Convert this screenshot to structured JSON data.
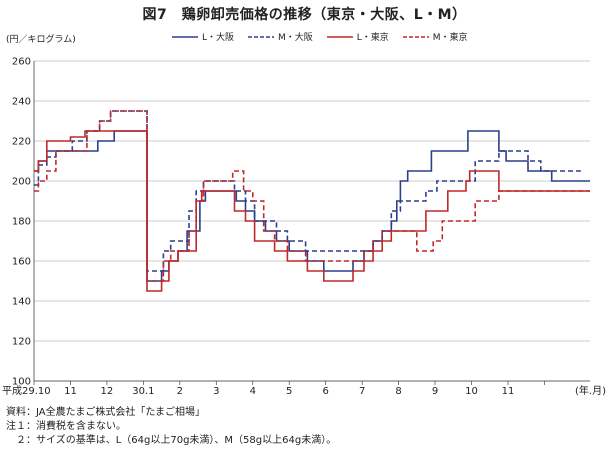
{
  "figure": {
    "title": "図7　鶏卵卸売価格の推移（東京・大阪、L・M）",
    "unit_label": "(円／キログラム)",
    "axis_end_label": "(年.月)",
    "notes": [
      "資料：JA全農たまご株式会社「たまご相場」",
      "注１：消費税を含まない。",
      "　２：サイズの基準は、L（64g以上70g未満）、M（58g以上64g未満）。"
    ]
  },
  "chart_data": {
    "type": "line",
    "ylim": [
      100,
      260
    ],
    "yticks": [
      100,
      120,
      140,
      160,
      180,
      200,
      220,
      240,
      260
    ],
    "xlim": [
      0,
      15.25
    ],
    "xticks": [
      {
        "x": 0,
        "label": "平成29.10"
      },
      {
        "x": 1,
        "label": "11"
      },
      {
        "x": 2,
        "label": "12"
      },
      {
        "x": 3,
        "label": "30.1"
      },
      {
        "x": 4,
        "label": "2"
      },
      {
        "x": 5,
        "label": "3"
      },
      {
        "x": 6,
        "label": "4"
      },
      {
        "x": 7,
        "label": "5"
      },
      {
        "x": 8,
        "label": "6"
      },
      {
        "x": 9,
        "label": "7"
      },
      {
        "x": 10,
        "label": "8"
      },
      {
        "x": 11,
        "label": "9"
      },
      {
        "x": 12,
        "label": "10"
      },
      {
        "x": 13,
        "label": "11"
      },
      {
        "x": 14,
        "label": ""
      }
    ],
    "grid": true,
    "legend_position": "top",
    "series": [
      {
        "name": "L・大阪",
        "color": "#2b3f8c",
        "dash": false,
        "points": [
          [
            0,
            205
          ],
          [
            0.12,
            210
          ],
          [
            0.35,
            215
          ],
          [
            0.75,
            215
          ],
          [
            1.3,
            215
          ],
          [
            1.75,
            220
          ],
          [
            2.2,
            225
          ],
          [
            2.55,
            225
          ],
          [
            2.95,
            225
          ],
          [
            3.1,
            150
          ],
          [
            3.35,
            150
          ],
          [
            3.5,
            155
          ],
          [
            3.7,
            160
          ],
          [
            3.95,
            165
          ],
          [
            4.2,
            175
          ],
          [
            4.55,
            190
          ],
          [
            4.7,
            195
          ],
          [
            5.0,
            195
          ],
          [
            5.3,
            195
          ],
          [
            5.55,
            190
          ],
          [
            5.8,
            185
          ],
          [
            6.05,
            180
          ],
          [
            6.35,
            175
          ],
          [
            6.65,
            170
          ],
          [
            7.0,
            165
          ],
          [
            7.5,
            160
          ],
          [
            7.95,
            155
          ],
          [
            8.45,
            155
          ],
          [
            8.75,
            160
          ],
          [
            9.05,
            165
          ],
          [
            9.3,
            170
          ],
          [
            9.55,
            175
          ],
          [
            9.8,
            180
          ],
          [
            9.95,
            190
          ],
          [
            10.05,
            200
          ],
          [
            10.25,
            205
          ],
          [
            10.55,
            205
          ],
          [
            10.9,
            215
          ],
          [
            11.7,
            215
          ],
          [
            11.9,
            225
          ],
          [
            12.5,
            225
          ],
          [
            12.75,
            215
          ],
          [
            12.95,
            210
          ],
          [
            13.4,
            210
          ],
          [
            13.55,
            205
          ],
          [
            14.2,
            200
          ],
          [
            14.45,
            200
          ],
          [
            15.25,
            200
          ]
        ]
      },
      {
        "name": "M・大阪",
        "color": "#2b3f8c",
        "dash": true,
        "points": [
          [
            0,
            198
          ],
          [
            0.12,
            208
          ],
          [
            0.35,
            212
          ],
          [
            0.6,
            215
          ],
          [
            1.05,
            220
          ],
          [
            1.45,
            225
          ],
          [
            1.8,
            230
          ],
          [
            2.1,
            235
          ],
          [
            2.55,
            235
          ],
          [
            2.95,
            235
          ],
          [
            3.1,
            155
          ],
          [
            3.35,
            155
          ],
          [
            3.55,
            165
          ],
          [
            3.75,
            170
          ],
          [
            4.0,
            170
          ],
          [
            4.25,
            185
          ],
          [
            4.45,
            195
          ],
          [
            4.65,
            200
          ],
          [
            5.0,
            200
          ],
          [
            5.25,
            200
          ],
          [
            5.5,
            195
          ],
          [
            5.8,
            190
          ],
          [
            6.05,
            180
          ],
          [
            6.3,
            180
          ],
          [
            6.65,
            175
          ],
          [
            6.95,
            170
          ],
          [
            7.45,
            165
          ],
          [
            8.1,
            165
          ],
          [
            8.45,
            165
          ],
          [
            8.75,
            165
          ],
          [
            9.05,
            165
          ],
          [
            9.3,
            170
          ],
          [
            9.55,
            175
          ],
          [
            9.8,
            185
          ],
          [
            10.05,
            190
          ],
          [
            10.4,
            190
          ],
          [
            10.75,
            195
          ],
          [
            11.05,
            200
          ],
          [
            11.9,
            200
          ],
          [
            12.1,
            210
          ],
          [
            12.55,
            210
          ],
          [
            12.75,
            215
          ],
          [
            13.35,
            215
          ],
          [
            13.55,
            210
          ],
          [
            13.9,
            205
          ],
          [
            15.0,
            205
          ]
        ]
      },
      {
        "name": "L・東京",
        "color": "#c0282a",
        "dash": false,
        "points": [
          [
            0,
            205
          ],
          [
            0.12,
            210
          ],
          [
            0.35,
            220
          ],
          [
            0.75,
            220
          ],
          [
            1.0,
            222
          ],
          [
            1.4,
            225
          ],
          [
            1.75,
            225
          ],
          [
            2.2,
            225
          ],
          [
            2.95,
            225
          ],
          [
            3.1,
            145
          ],
          [
            3.35,
            145
          ],
          [
            3.5,
            150
          ],
          [
            3.7,
            160
          ],
          [
            3.95,
            165
          ],
          [
            4.2,
            165
          ],
          [
            4.45,
            190
          ],
          [
            4.6,
            195
          ],
          [
            5.0,
            195
          ],
          [
            5.3,
            195
          ],
          [
            5.5,
            185
          ],
          [
            5.8,
            180
          ],
          [
            6.05,
            170
          ],
          [
            6.35,
            170
          ],
          [
            6.6,
            165
          ],
          [
            6.95,
            160
          ],
          [
            7.5,
            155
          ],
          [
            7.95,
            150
          ],
          [
            8.45,
            150
          ],
          [
            8.75,
            155
          ],
          [
            9.05,
            160
          ],
          [
            9.3,
            165
          ],
          [
            9.55,
            170
          ],
          [
            9.8,
            175
          ],
          [
            10.05,
            175
          ],
          [
            10.4,
            175
          ],
          [
            10.75,
            185
          ],
          [
            11.05,
            185
          ],
          [
            11.35,
            195
          ],
          [
            11.85,
            200
          ],
          [
            11.95,
            205
          ],
          [
            12.3,
            205
          ],
          [
            12.65,
            205
          ],
          [
            12.75,
            195
          ],
          [
            15.25,
            195
          ]
        ]
      },
      {
        "name": "M・東京",
        "color": "#c0282a",
        "dash": true,
        "points": [
          [
            0,
            195
          ],
          [
            0.12,
            200
          ],
          [
            0.35,
            205
          ],
          [
            0.6,
            215
          ],
          [
            1.05,
            215
          ],
          [
            1.45,
            225
          ],
          [
            1.8,
            230
          ],
          [
            2.1,
            235
          ],
          [
            2.55,
            235
          ],
          [
            2.95,
            235
          ],
          [
            3.1,
            150
          ],
          [
            3.35,
            150
          ],
          [
            3.55,
            160
          ],
          [
            3.75,
            165
          ],
          [
            4.0,
            165
          ],
          [
            4.25,
            175
          ],
          [
            4.45,
            190
          ],
          [
            4.65,
            200
          ],
          [
            5.0,
            200
          ],
          [
            5.25,
            200
          ],
          [
            5.45,
            205
          ],
          [
            5.75,
            195
          ],
          [
            6.0,
            190
          ],
          [
            6.3,
            175
          ],
          [
            6.6,
            170
          ],
          [
            6.95,
            165
          ],
          [
            7.45,
            160
          ],
          [
            8.1,
            160
          ],
          [
            8.45,
            160
          ],
          [
            8.75,
            160
          ],
          [
            9.05,
            165
          ],
          [
            9.3,
            170
          ],
          [
            9.55,
            175
          ],
          [
            9.75,
            175
          ],
          [
            10.0,
            175
          ],
          [
            10.25,
            175
          ],
          [
            10.5,
            165
          ],
          [
            10.7,
            165
          ],
          [
            10.95,
            170
          ],
          [
            11.2,
            180
          ],
          [
            11.5,
            180
          ],
          [
            11.8,
            180
          ],
          [
            12.1,
            190
          ],
          [
            12.5,
            190
          ],
          [
            12.75,
            195
          ],
          [
            15.25,
            195
          ]
        ]
      }
    ]
  }
}
